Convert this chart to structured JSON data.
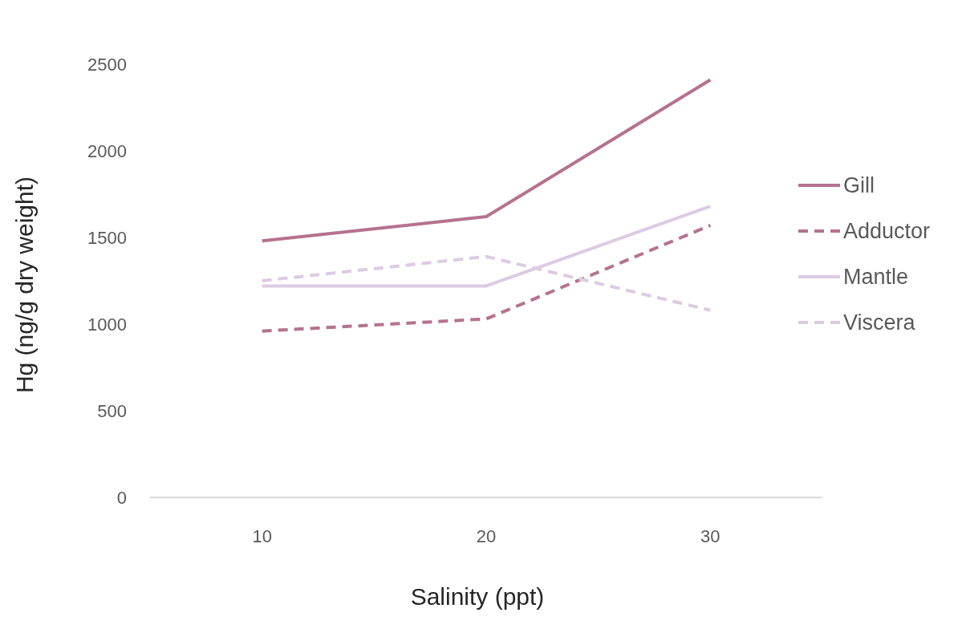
{
  "chart_data": {
    "type": "line",
    "xlabel": "Salinity (ppt)",
    "ylabel": "Hg (ng/g dry weight)",
    "categories": [
      "10",
      "20",
      "30"
    ],
    "ylim": [
      0,
      2500
    ],
    "yticks": [
      0,
      500,
      1000,
      1500,
      2000,
      2500
    ],
    "grid": false,
    "legend": "right",
    "marker": "none",
    "series": [
      {
        "name": "Gill",
        "color": "#b5728f",
        "line_style": "solid",
        "values": [
          1480,
          1620,
          2410
        ]
      },
      {
        "name": "Adductor",
        "color": "#b5728f",
        "line_style": "dashed",
        "values": [
          960,
          1030,
          1570
        ]
      },
      {
        "name": "Mantle",
        "color": "#dccbe3",
        "line_style": "solid",
        "values": [
          1220,
          1220,
          1680
        ]
      },
      {
        "name": "Viscera",
        "color": "#dccbe3",
        "line_style": "dashed",
        "values": [
          1250,
          1390,
          1080
        ]
      }
    ]
  }
}
